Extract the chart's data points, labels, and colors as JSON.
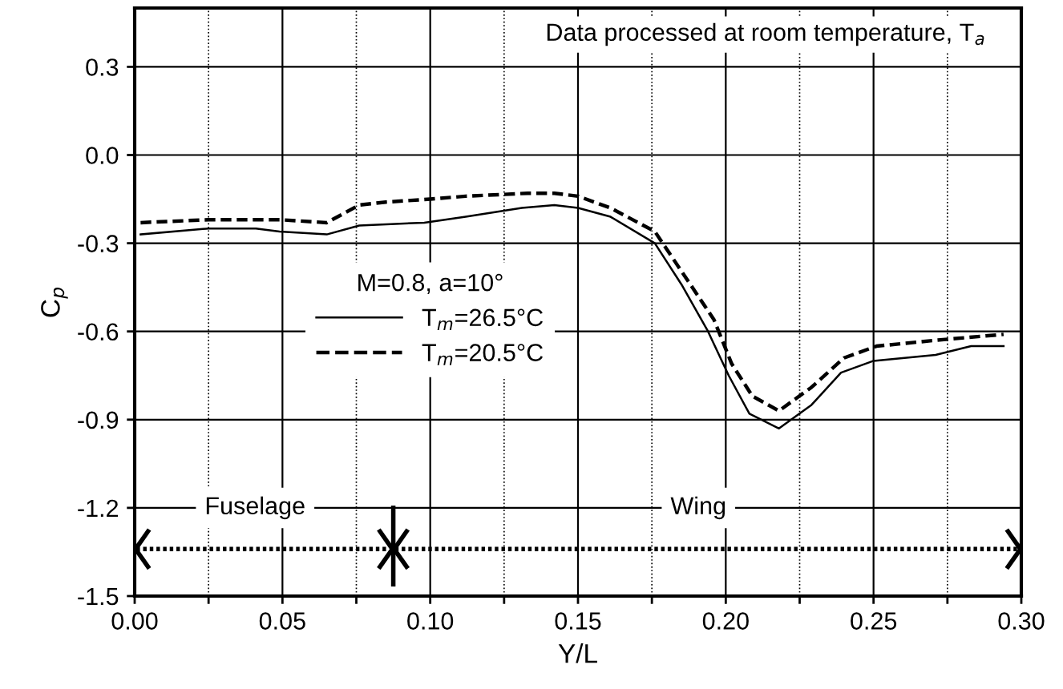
{
  "chart_data": {
    "type": "line",
    "xlabel": "Y/L",
    "ylabel": "C$_{p}$",
    "legend_title": "M=0.8, a=10°",
    "annotations": [
      "Data processed at room temperature, T$_{a}$",
      "Fuselage",
      "Wing"
    ],
    "x": [
      0.002,
      0.025,
      0.041,
      0.049,
      0.065,
      0.076,
      0.098,
      0.112,
      0.131,
      0.142,
      0.15,
      0.161,
      0.176,
      0.185,
      0.194,
      0.201,
      0.208,
      0.218,
      0.229,
      0.239,
      0.25,
      0.271,
      0.283,
      0.294
    ],
    "series": [
      {
        "name": "T$_{m}$=26.5°C",
        "color": "#000000",
        "line_style": "solid",
        "values": [
          -0.27,
          -0.25,
          -0.25,
          -0.26,
          -0.27,
          -0.24,
          -0.23,
          -0.21,
          -0.18,
          -0.17,
          -0.18,
          -0.21,
          -0.3,
          -0.44,
          -0.6,
          -0.75,
          -0.88,
          -0.93,
          -0.85,
          -0.74,
          -0.7,
          -0.68,
          -0.65,
          -0.65
        ]
      },
      {
        "name": "T$_{m}$=20.5°C",
        "color": "#000000",
        "line_style": "dashed",
        "x": [
          0.002,
          0.025,
          0.049,
          0.065,
          0.076,
          0.085,
          0.1,
          0.112,
          0.133,
          0.142,
          0.15,
          0.161,
          0.176,
          0.186,
          0.196,
          0.202,
          0.209,
          0.218,
          0.229,
          0.24,
          0.251,
          0.271,
          0.294
        ],
        "values": [
          -0.23,
          -0.22,
          -0.22,
          -0.23,
          -0.17,
          -0.16,
          -0.15,
          -0.14,
          -0.13,
          -0.13,
          -0.14,
          -0.18,
          -0.26,
          -0.41,
          -0.56,
          -0.71,
          -0.82,
          -0.87,
          -0.79,
          -0.69,
          -0.65,
          -0.63,
          -0.61
        ]
      }
    ],
    "ref_lines": [
      {
        "axis": "x",
        "value": 0.0875
      }
    ],
    "xlim": [
      0,
      0.3
    ],
    "ylim": [
      -1.5,
      0.5
    ],
    "xticks": [
      {
        "value": 0,
        "label": "0.00"
      },
      {
        "value": 0.025,
        "label": null
      },
      {
        "value": 0.05,
        "label": "0.05"
      },
      {
        "value": 0.075,
        "label": null
      },
      {
        "value": 0.1,
        "label": "0.10"
      },
      {
        "value": 0.125,
        "label": null
      },
      {
        "value": 0.15,
        "label": "0.15"
      },
      {
        "value": 0.175,
        "label": null
      },
      {
        "value": 0.2,
        "label": "0.20"
      },
      {
        "value": 0.225,
        "label": null
      },
      {
        "value": 0.25,
        "label": "0.25"
      },
      {
        "value": 0.275,
        "label": null
      },
      {
        "value": 0.3,
        "label": "0.30"
      }
    ],
    "yticks": [
      {
        "value": -1.5,
        "label": "-1.5"
      },
      {
        "value": -1.2,
        "label": "-1.2"
      },
      {
        "value": -0.9,
        "label": "-0.9"
      },
      {
        "value": -0.6,
        "label": "-0.6"
      },
      {
        "value": -0.3,
        "label": "-0.3"
      },
      {
        "value": 0,
        "label": "0.0"
      },
      {
        "value": 0.3,
        "label": "0.3"
      }
    ],
    "grid": true,
    "legend": "center",
    "marker": "none"
  }
}
